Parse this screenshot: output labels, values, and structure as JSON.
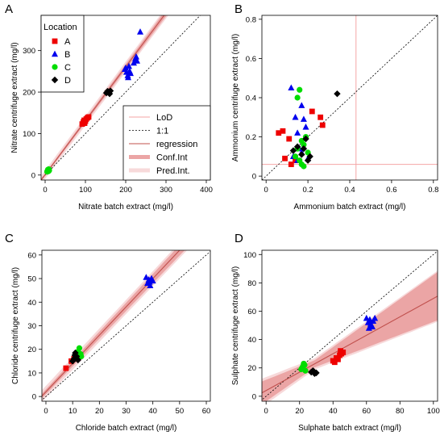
{
  "colors": {
    "A": "#ee0000",
    "B": "#0000ee",
    "C": "#00dd00",
    "D": "#000000",
    "regression": "#c0504d",
    "conf": "#eba5a5",
    "pred": "#f7d9da",
    "lod": "#f4a6a6",
    "oneone": "#000000"
  },
  "legend_location": {
    "title": "Location",
    "entries": [
      {
        "name": "A",
        "marker": "square"
      },
      {
        "name": "B",
        "marker": "triangle"
      },
      {
        "name": "C",
        "marker": "circle"
      },
      {
        "name": "D",
        "marker": "diamond"
      }
    ]
  },
  "legend_lines": {
    "entries": [
      "LoD",
      "1:1",
      "regression",
      "Conf.Int",
      "Pred.Int."
    ]
  },
  "chart_data": [
    {
      "type": "scatter",
      "panel_label": "A",
      "xlabel": "Nitrate batch extract (mg/l)",
      "ylabel": "Nitrate centrifuge extract (mg/l)",
      "xlim": [
        -10,
        410
      ],
      "ylim": [
        -12,
        385
      ],
      "xticks": [
        0,
        100,
        200,
        300,
        400
      ],
      "yticks": [
        0,
        100,
        200,
        300
      ],
      "regression": {
        "slope": 1.3,
        "intercept": 1
      },
      "conf_halfwidth": [
        3,
        10
      ],
      "pred_halfwidth": [
        10,
        15
      ],
      "lod": null,
      "series": [
        {
          "name": "A",
          "x": [
            92,
            95,
            97,
            100,
            102,
            105,
            108,
            98
          ],
          "y": [
            123,
            128,
            132,
            130,
            135,
            138,
            140,
            125
          ]
        },
        {
          "name": "B",
          "x": [
            198,
            202,
            205,
            208,
            210,
            212,
            220,
            224,
            226,
            228,
            236,
            200,
            206
          ],
          "y": [
            255,
            248,
            240,
            262,
            250,
            245,
            270,
            280,
            285,
            275,
            345,
            258,
            235
          ]
        },
        {
          "name": "C",
          "x": [
            5,
            6,
            7,
            8,
            9,
            10,
            7
          ],
          "y": [
            8,
            10,
            12,
            9,
            14,
            11,
            13
          ]
        },
        {
          "name": "D",
          "x": [
            152,
            155,
            157,
            160,
            162,
            158,
            156
          ],
          "y": [
            198,
            202,
            200,
            196,
            203,
            199,
            201
          ]
        }
      ]
    },
    {
      "type": "scatter",
      "panel_label": "B",
      "xlabel": "Ammonium batch extract (mg/l)",
      "ylabel": "Ammonium centrifuge extract (mg/l)",
      "xlim": [
        -0.02,
        0.82
      ],
      "ylim": [
        -0.02,
        0.82
      ],
      "xticks": [
        0.0,
        0.2,
        0.4,
        0.6,
        0.8
      ],
      "yticks": [
        0.0,
        0.2,
        0.4,
        0.6,
        0.8
      ],
      "regression": null,
      "lod": {
        "x": 0.43,
        "y": 0.06
      },
      "series": [
        {
          "name": "A",
          "x": [
            0.06,
            0.08,
            0.12,
            0.14,
            0.22,
            0.26,
            0.27,
            0.09,
            0.11
          ],
          "y": [
            0.22,
            0.23,
            0.06,
            0.08,
            0.33,
            0.3,
            0.26,
            0.09,
            0.19
          ]
        },
        {
          "name": "B",
          "x": [
            0.12,
            0.14,
            0.15,
            0.16,
            0.17,
            0.18,
            0.19,
            0.2,
            0.15,
            0.17,
            0.13
          ],
          "y": [
            0.45,
            0.3,
            0.22,
            0.14,
            0.36,
            0.29,
            0.25,
            0.09,
            0.08,
            0.12,
            0.1
          ]
        },
        {
          "name": "C",
          "x": [
            0.14,
            0.15,
            0.16,
            0.17,
            0.18,
            0.19,
            0.2,
            0.16,
            0.18,
            0.17,
            0.15
          ],
          "y": [
            0.1,
            0.4,
            0.44,
            0.06,
            0.16,
            0.2,
            0.12,
            0.08,
            0.05,
            0.18,
            0.14
          ]
        },
        {
          "name": "D",
          "x": [
            0.13,
            0.15,
            0.17,
            0.19,
            0.21,
            0.34,
            0.18,
            0.2
          ],
          "y": [
            0.13,
            0.15,
            0.11,
            0.19,
            0.1,
            0.42,
            0.14,
            0.08
          ]
        }
      ]
    },
    {
      "type": "scatter",
      "panel_label": "C",
      "xlabel": "Chloride batch extract (mg/l)",
      "ylabel": "Chloride centrifuge extract (mg/l)",
      "xlim": [
        -1.5,
        61.5
      ],
      "ylim": [
        -2,
        62
      ],
      "xticks": [
        0,
        10,
        20,
        30,
        40,
        50,
        60
      ],
      "yticks": [
        0,
        10,
        20,
        30,
        40,
        50,
        60
      ],
      "regression": {
        "slope": 1.2,
        "intercept": 2
      },
      "conf_halfwidth": [
        1,
        2.5
      ],
      "pred_halfwidth": [
        2.5,
        3.5
      ],
      "lod": null,
      "series": [
        {
          "name": "A",
          "x": [
            7.5,
            9.5,
            10.5,
            11
          ],
          "y": [
            12,
            15,
            16,
            17
          ]
        },
        {
          "name": "B",
          "x": [
            37.5,
            38,
            38.5,
            39,
            39.5,
            40,
            38.8
          ],
          "y": [
            50.5,
            48,
            49.5,
            47,
            50,
            49,
            48.5
          ]
        },
        {
          "name": "C",
          "x": [
            11,
            12,
            12.5,
            13,
            11.5,
            12,
            13.2
          ],
          "y": [
            17.5,
            19,
            20.5,
            18,
            16.5,
            18.5,
            17
          ]
        },
        {
          "name": "D",
          "x": [
            10,
            10.5,
            11,
            11.5,
            12,
            10.8
          ],
          "y": [
            15,
            16,
            18.5,
            17,
            15.5,
            17.5
          ]
        }
      ]
    },
    {
      "type": "scatter",
      "panel_label": "D",
      "xlabel": "Sulphate batch extract (mg/l)",
      "ylabel": "Sulphate centrifuge extract (mg/l)",
      "xlim": [
        -2.5,
        102.5
      ],
      "ylim": [
        -3.5,
        103
      ],
      "xticks": [
        0,
        20,
        40,
        60,
        80,
        100
      ],
      "yticks": [
        0,
        20,
        40,
        60,
        80,
        100
      ],
      "regression": {
        "slope": 0.65,
        "intercept": 4
      },
      "conf_halfwidth": [
        8,
        2.5,
        17
      ],
      "pred_halfwidth": [
        10,
        4,
        18
      ],
      "lod": null,
      "series": [
        {
          "name": "A",
          "x": [
            40,
            42,
            43,
            44,
            45,
            46,
            41,
            44.5
          ],
          "y": [
            25,
            27,
            26,
            29,
            30,
            31,
            24,
            32
          ]
        },
        {
          "name": "B",
          "x": [
            60,
            61,
            62,
            63,
            64,
            65,
            61.5,
            62.5,
            63.5
          ],
          "y": [
            55,
            52,
            54,
            50,
            53,
            55,
            48,
            51,
            49
          ]
        },
        {
          "name": "C",
          "x": [
            21,
            22,
            23,
            21.5,
            22.5,
            23.5,
            22
          ],
          "y": [
            19,
            21,
            22,
            20,
            23,
            18,
            20.5
          ]
        },
        {
          "name": "D",
          "x": [
            27,
            28,
            29,
            30,
            28.5
          ],
          "y": [
            17,
            18,
            16,
            16.5,
            17.5
          ]
        }
      ]
    }
  ]
}
